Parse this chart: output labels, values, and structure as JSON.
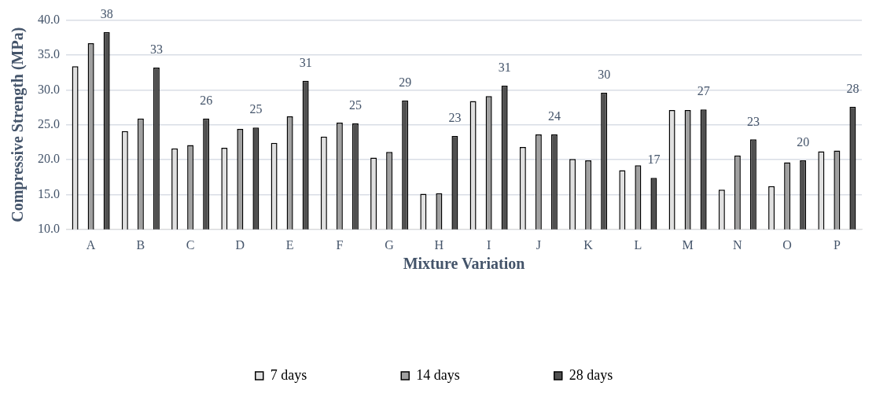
{
  "chart_data": {
    "type": "bar",
    "xlabel": "Mixture Variation",
    "ylabel": "Compressive Strength (MPa)",
    "categories": [
      "A",
      "B",
      "C",
      "D",
      "E",
      "F",
      "G",
      "H",
      "I",
      "J",
      "K",
      "L",
      "M",
      "N",
      "O",
      "P"
    ],
    "series": [
      {
        "name": "7 days",
        "color": "#e0e0e0",
        "values": [
          33.4,
          24.1,
          21.6,
          21.7,
          22.4,
          23.3,
          20.3,
          15.1,
          28.4,
          21.8,
          20.1,
          18.5,
          27.1,
          15.7,
          16.2,
          21.2
        ]
      },
      {
        "name": "14 days",
        "color": "#a0a0a0",
        "values": [
          36.7,
          25.9,
          22.1,
          24.4,
          26.2,
          25.3,
          21.1,
          15.2,
          29.1,
          23.6,
          19.9,
          19.2,
          27.1,
          20.6,
          19.6,
          21.3
        ]
      },
      {
        "name": "28 days",
        "color": "#505050",
        "values": [
          38.3,
          33.2,
          25.9,
          24.6,
          31.3,
          25.2,
          28.5,
          23.4,
          30.6,
          23.6,
          29.6,
          17.4,
          27.2,
          22.9,
          19.9,
          27.6
        ],
        "value_labels": [
          "38",
          "33",
          "26",
          "25",
          "31",
          "25",
          "29",
          "23",
          "31",
          "24",
          "30",
          "17",
          "27",
          "23",
          "20",
          "28"
        ]
      }
    ],
    "ylim": [
      10,
      40
    ],
    "yticks": [
      "10.0",
      "15.0",
      "20.0",
      "25.0",
      "30.0",
      "35.0",
      "40.0"
    ],
    "grid": "y",
    "legend": "bottom"
  }
}
